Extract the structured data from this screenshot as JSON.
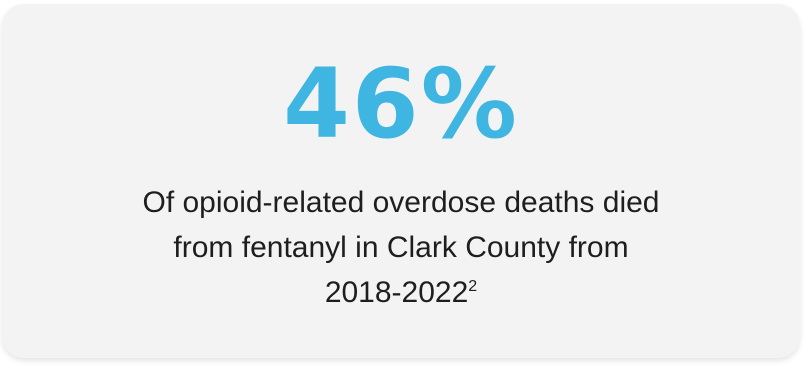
{
  "card": {
    "stat_value": "46%",
    "description_lines": [
      "Of opioid-related overdose deaths died",
      "from fentanyl in Clark County from",
      "2018-2022"
    ],
    "footnote_ref": "2",
    "accent_color": "#3fb6e2",
    "background_color": "#f3f3f3"
  }
}
